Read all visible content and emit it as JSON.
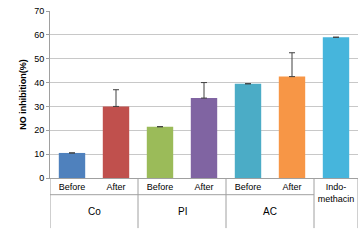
{
  "chart_data": {
    "type": "bar",
    "y_label": "NO inhibition(%)",
    "categories": [
      "Before",
      "After",
      "Before",
      "After",
      "Before",
      "After",
      "Indo-methacin"
    ],
    "groups": [
      "Co",
      "Co",
      "PI",
      "PI",
      "AC",
      "AC",
      null
    ],
    "values": [
      10.5,
      30,
      21.5,
      33.5,
      39.5,
      42.5,
      59
    ],
    "errors": [
      null,
      7,
      null,
      6.5,
      null,
      10,
      null
    ],
    "colors": [
      "#4f81bd",
      "#c0504d",
      "#9bbb59",
      "#8064a2",
      "#4bacc6",
      "#f79646",
      "#46b5dc"
    ],
    "ylim": [
      0,
      70
    ],
    "yticks": [
      0,
      10,
      20,
      30,
      40,
      50,
      60,
      70
    ],
    "grid": true
  }
}
